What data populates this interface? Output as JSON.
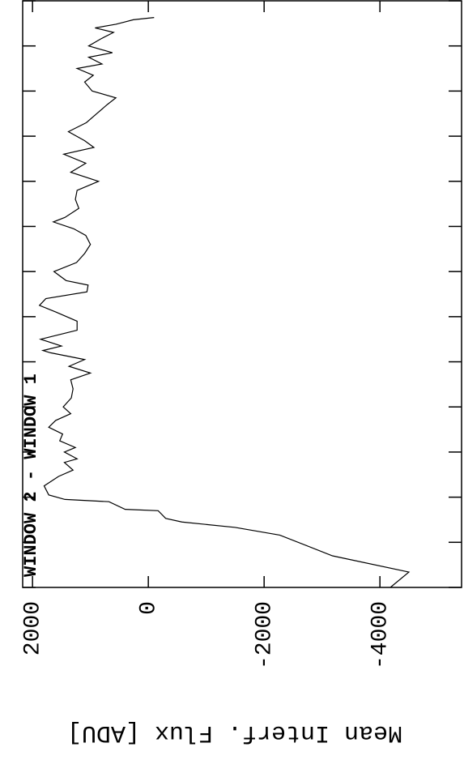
{
  "chart_data": {
    "type": "line",
    "title": "WINDOW 2 - WINDOW 1",
    "y_label": "Mean Interf. Flux [ADU]",
    "ylim": [
      2170,
      -5410
    ],
    "yticks": [
      2000,
      0,
      -2000,
      -4000
    ],
    "xlim": [
      0,
      130
    ],
    "xticks": [
      0,
      10,
      20,
      30,
      40,
      50,
      60,
      70,
      80,
      90,
      100,
      110,
      120,
      130
    ],
    "color": "#000000",
    "x": [
      0,
      3.4,
      7,
      11.6,
      13.3,
      14.5,
      15.3,
      17,
      17.3,
      19,
      19.5,
      20.5,
      22.5,
      24.6,
      26,
      27.7,
      28.5,
      30,
      31,
      32.5,
      34,
      35.5,
      37,
      38.5,
      40,
      42,
      44,
      46,
      47.5,
      49,
      50.5,
      52,
      52.5,
      53.5,
      55,
      57,
      59,
      61,
      62.5,
      64,
      65.5,
      67,
      68,
      70,
      72,
      74,
      76,
      78,
      79.5,
      81,
      82,
      84,
      86,
      88,
      90,
      92,
      94,
      96,
      97.5,
      99,
      101,
      103,
      105,
      107,
      108.5,
      110,
      112,
      113.5,
      115,
      116,
      117.5,
      118.5,
      120,
      121.5,
      123,
      124,
      124.8,
      125.3,
      125.8,
      126.3
    ],
    "values": [
      -4180,
      -4500,
      -3180,
      -2270,
      -1500,
      -580,
      -300,
      -170,
      400,
      680,
      1440,
      1720,
      1800,
      1550,
      1300,
      1450,
      1230,
      1450,
      1260,
      1530,
      1480,
      1720,
      1600,
      1340,
      1470,
      1330,
      1300,
      1340,
      1000,
      1370,
      1100,
      1690,
      1820,
      1500,
      1860,
      1230,
      1230,
      1590,
      1880,
      1770,
      1060,
      1040,
      1420,
      1630,
      1240,
      1100,
      1000,
      1080,
      1290,
      1640,
      1440,
      1200,
      1260,
      1230,
      860,
      1340,
      1080,
      1460,
      940,
      1100,
      1380,
      1070,
      890,
      710,
      560,
      970,
      1100,
      950,
      1230,
      800,
      1030,
      620,
      1030,
      830,
      600,
      920,
      560,
      410,
      260,
      -100
    ]
  }
}
